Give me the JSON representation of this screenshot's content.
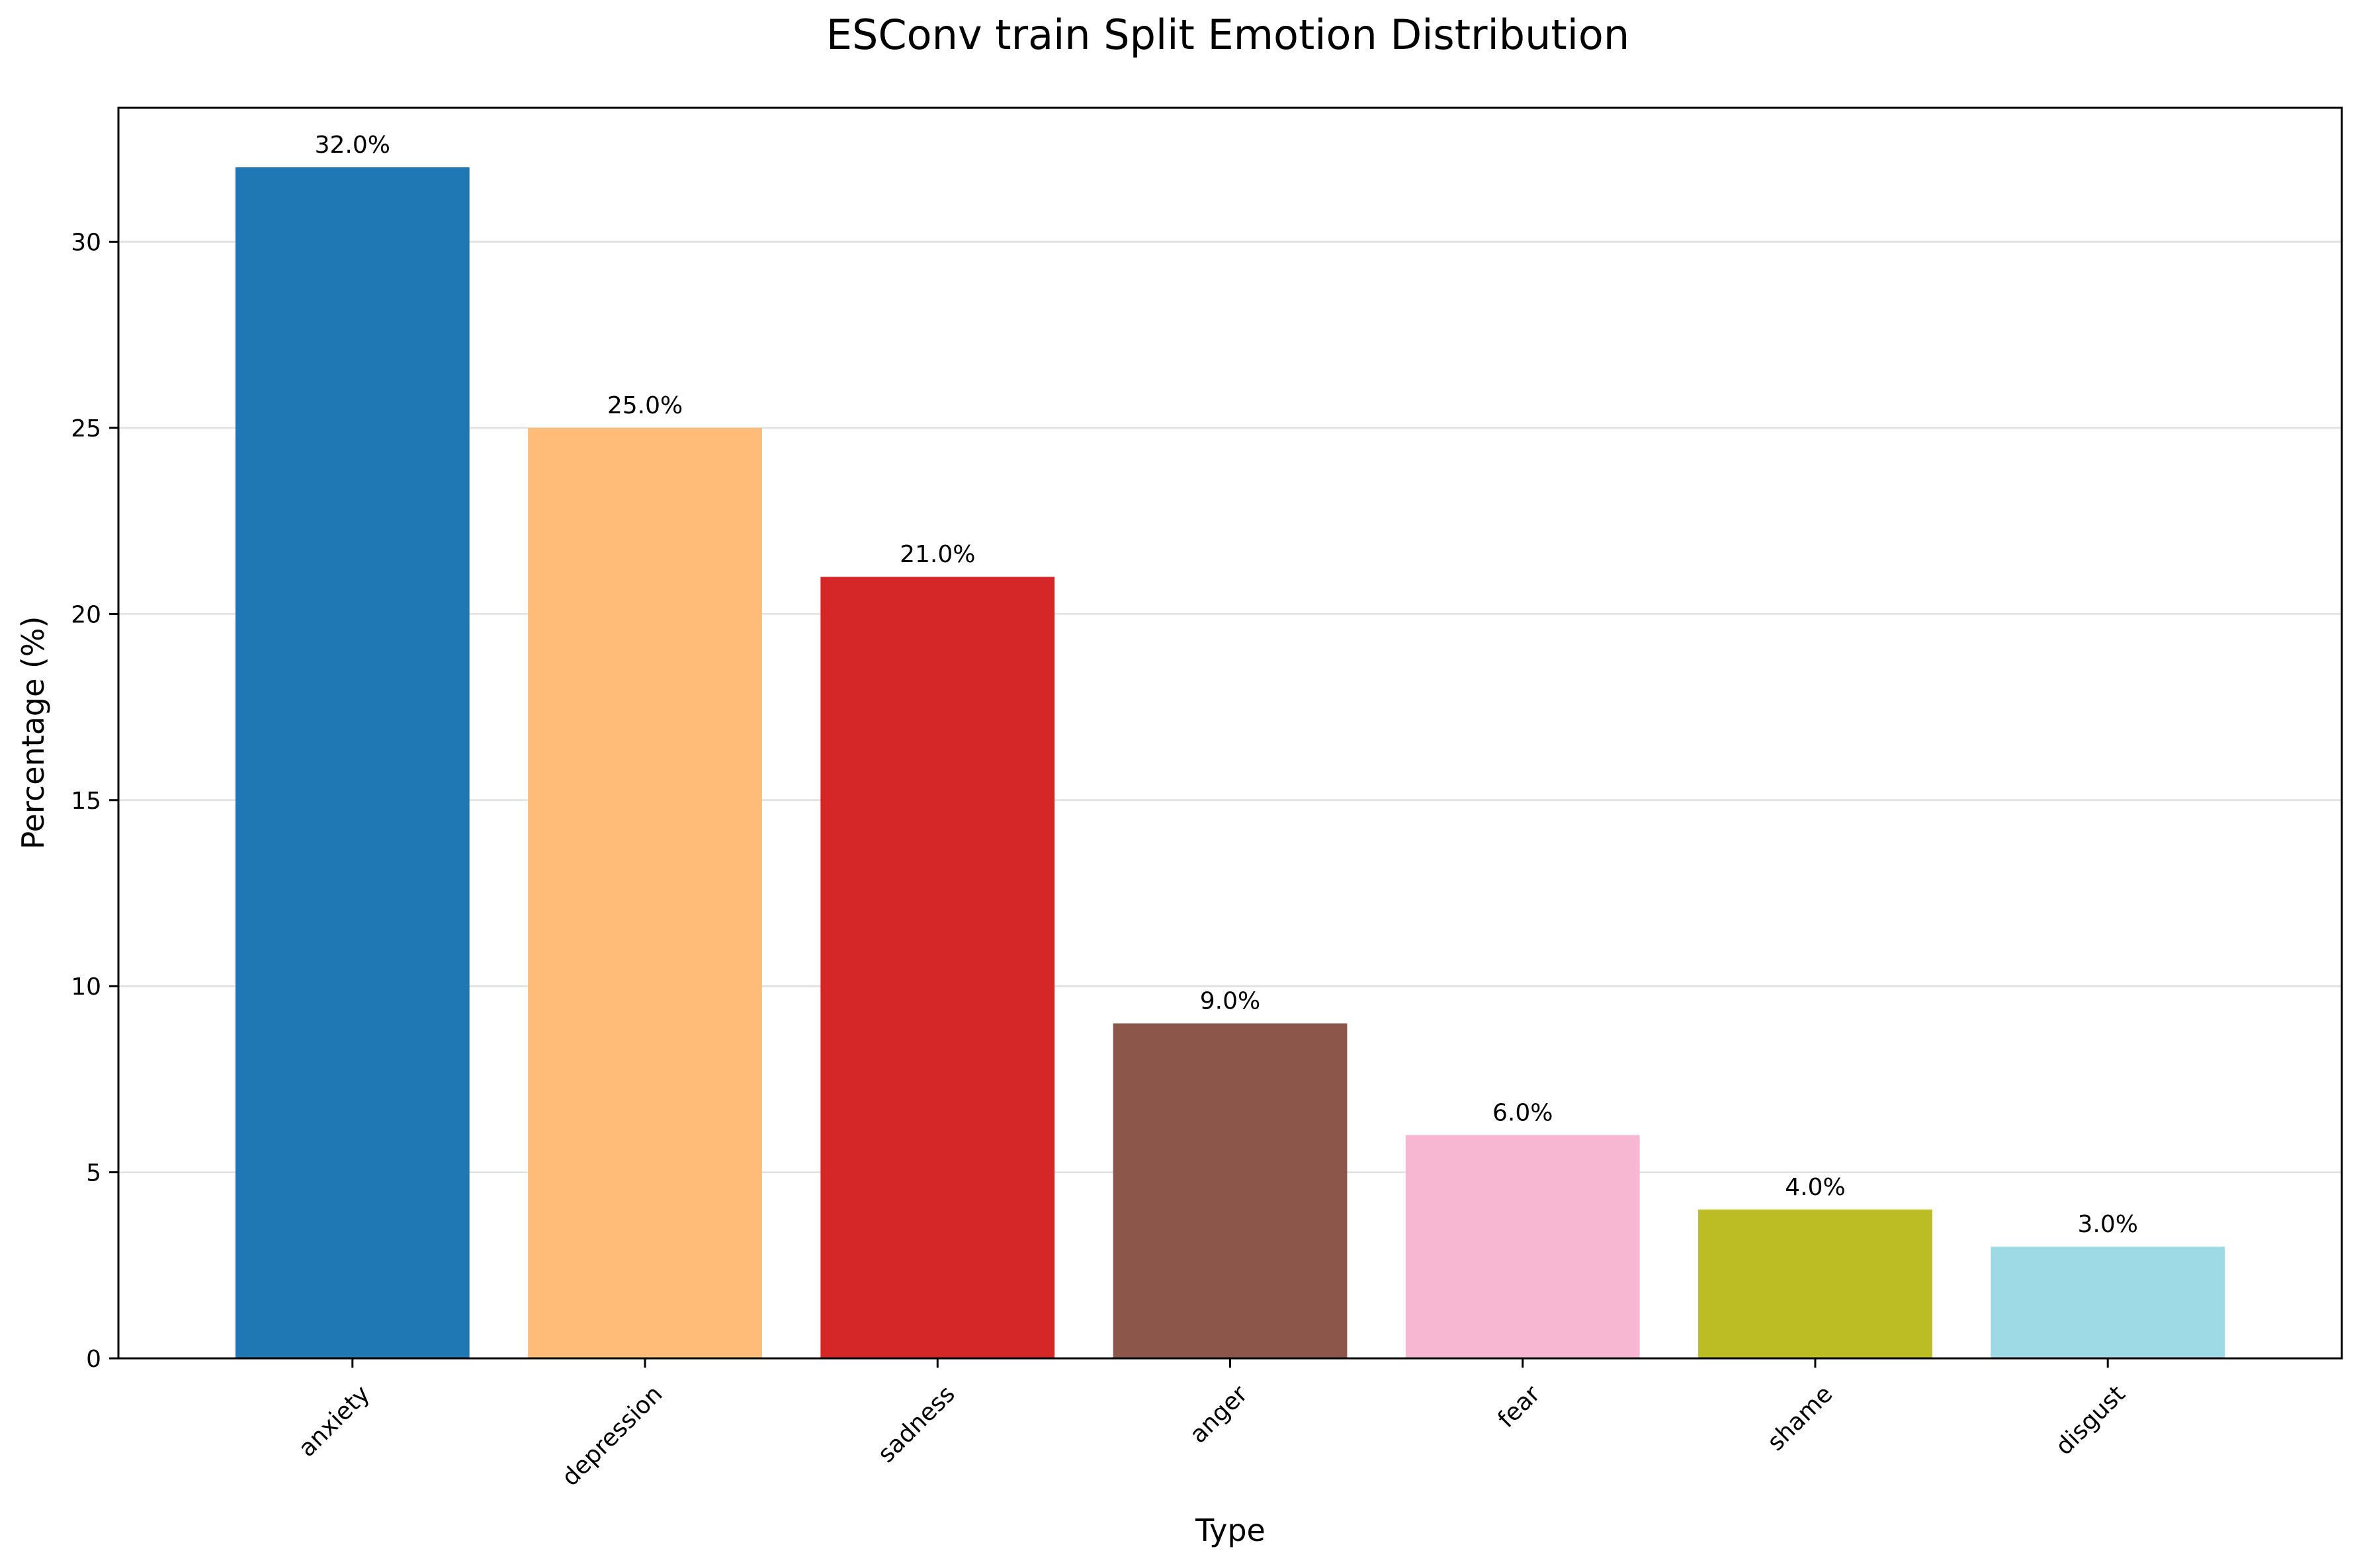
{
  "chart_data": {
    "type": "bar",
    "title": "ESConv train Split Emotion Distribution",
    "xlabel": "Type",
    "ylabel": "Percentage (%)",
    "categories": [
      "anxiety",
      "depression",
      "sadness",
      "anger",
      "fear",
      "shame",
      "disgust"
    ],
    "values": [
      32.0,
      25.0,
      21.0,
      9.0,
      6.0,
      4.0,
      3.0
    ],
    "data_labels": [
      "32.0%",
      "25.0%",
      "21.0%",
      "9.0%",
      "6.0%",
      "4.0%",
      "3.0%"
    ],
    "colors": [
      "#1f77b4",
      "#ffbb78",
      "#d62728",
      "#8c564b",
      "#f7b6d2",
      "#bcbd22",
      "#9edae5"
    ],
    "ylim": [
      0,
      33.6
    ],
    "yticks": [
      0,
      5,
      10,
      15,
      20,
      25,
      30
    ],
    "ytick_labels": [
      "0",
      "5",
      "10",
      "15",
      "20",
      "25",
      "30"
    ],
    "grid": "y",
    "legend": "none"
  }
}
